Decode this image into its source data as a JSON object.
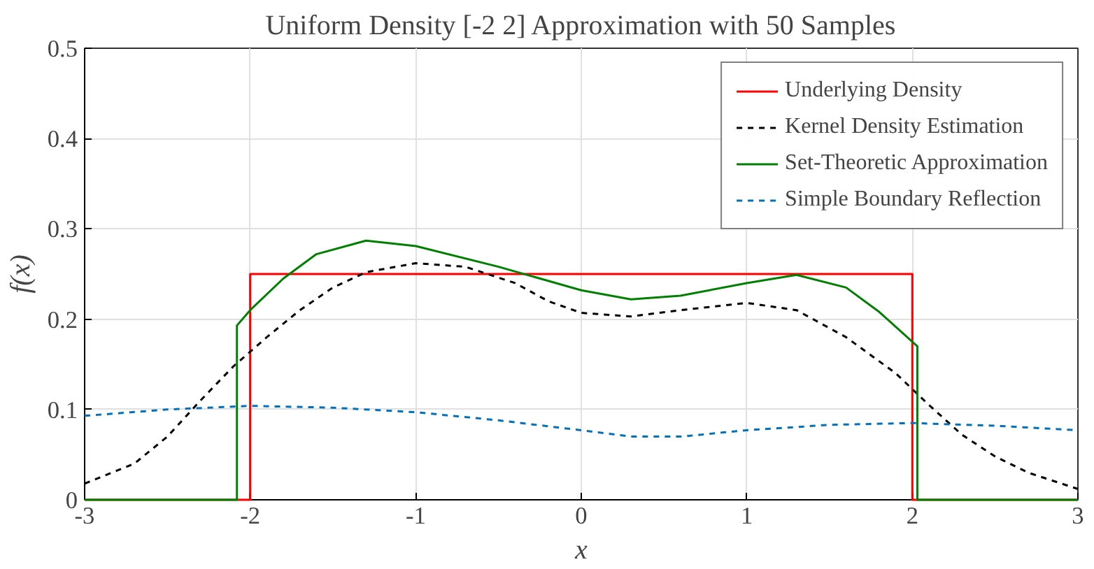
{
  "chart_data": {
    "type": "line",
    "title": "Uniform Density [-2 2] Approximation with 50 Samples",
    "xlabel": "x",
    "ylabel": "f(x)",
    "xlim": [
      -3,
      3
    ],
    "ylim": [
      0,
      0.5
    ],
    "xticks": [
      -3,
      -2,
      -1,
      0,
      1,
      2,
      3
    ],
    "yticks": [
      0,
      0.1,
      0.2,
      0.3,
      0.4,
      0.5
    ],
    "grid": true,
    "legend": "top right",
    "series": [
      {
        "name": "Underlying Density",
        "color": "#ff0000",
        "line_style": "solid",
        "x": [
          -3,
          -2,
          -2,
          2,
          2,
          3
        ],
        "values": [
          0,
          0,
          0.25,
          0.25,
          0,
          0
        ]
      },
      {
        "name": "Kernel Density Estimation",
        "color": "#000000",
        "line_style": "dashed",
        "x": [
          -3,
          -2.7,
          -2.5,
          -2.3,
          -2.1,
          -1.9,
          -1.7,
          -1.5,
          -1.3,
          -1,
          -0.7,
          -0.4,
          -0.2,
          0,
          0.3,
          0.6,
          1,
          1.3,
          1.6,
          1.9,
          2.1,
          2.3,
          2.5,
          2.7,
          3
        ],
        "values": [
          0.018,
          0.04,
          0.07,
          0.11,
          0.148,
          0.18,
          0.21,
          0.235,
          0.252,
          0.262,
          0.258,
          0.24,
          0.22,
          0.207,
          0.203,
          0.21,
          0.218,
          0.21,
          0.18,
          0.14,
          0.105,
          0.072,
          0.048,
          0.03,
          0.012
        ]
      },
      {
        "name": "Set-Theoretic Approximation",
        "color": "#008000",
        "line_style": "solid",
        "x": [
          -3,
          -2.08,
          -2.08,
          -2,
          -1.8,
          -1.6,
          -1.3,
          -1,
          -0.5,
          0,
          0.3,
          0.6,
          1,
          1.3,
          1.6,
          1.8,
          2.03,
          2.03,
          3
        ],
        "values": [
          0,
          0,
          0.193,
          0.21,
          0.245,
          0.272,
          0.287,
          0.281,
          0.258,
          0.232,
          0.222,
          0.226,
          0.24,
          0.249,
          0.235,
          0.208,
          0.17,
          0,
          0
        ]
      },
      {
        "name": "Simple Boundary Reflection",
        "color": "#0072bd",
        "line_style": "dashed",
        "x": [
          -3,
          -2.5,
          -2,
          -1.5,
          -1,
          -0.5,
          0,
          0.3,
          0.6,
          1,
          1.5,
          2,
          2.5,
          3
        ],
        "values": [
          0.093,
          0.1,
          0.104,
          0.102,
          0.097,
          0.088,
          0.077,
          0.07,
          0.07,
          0.077,
          0.083,
          0.085,
          0.082,
          0.077
        ]
      }
    ]
  }
}
